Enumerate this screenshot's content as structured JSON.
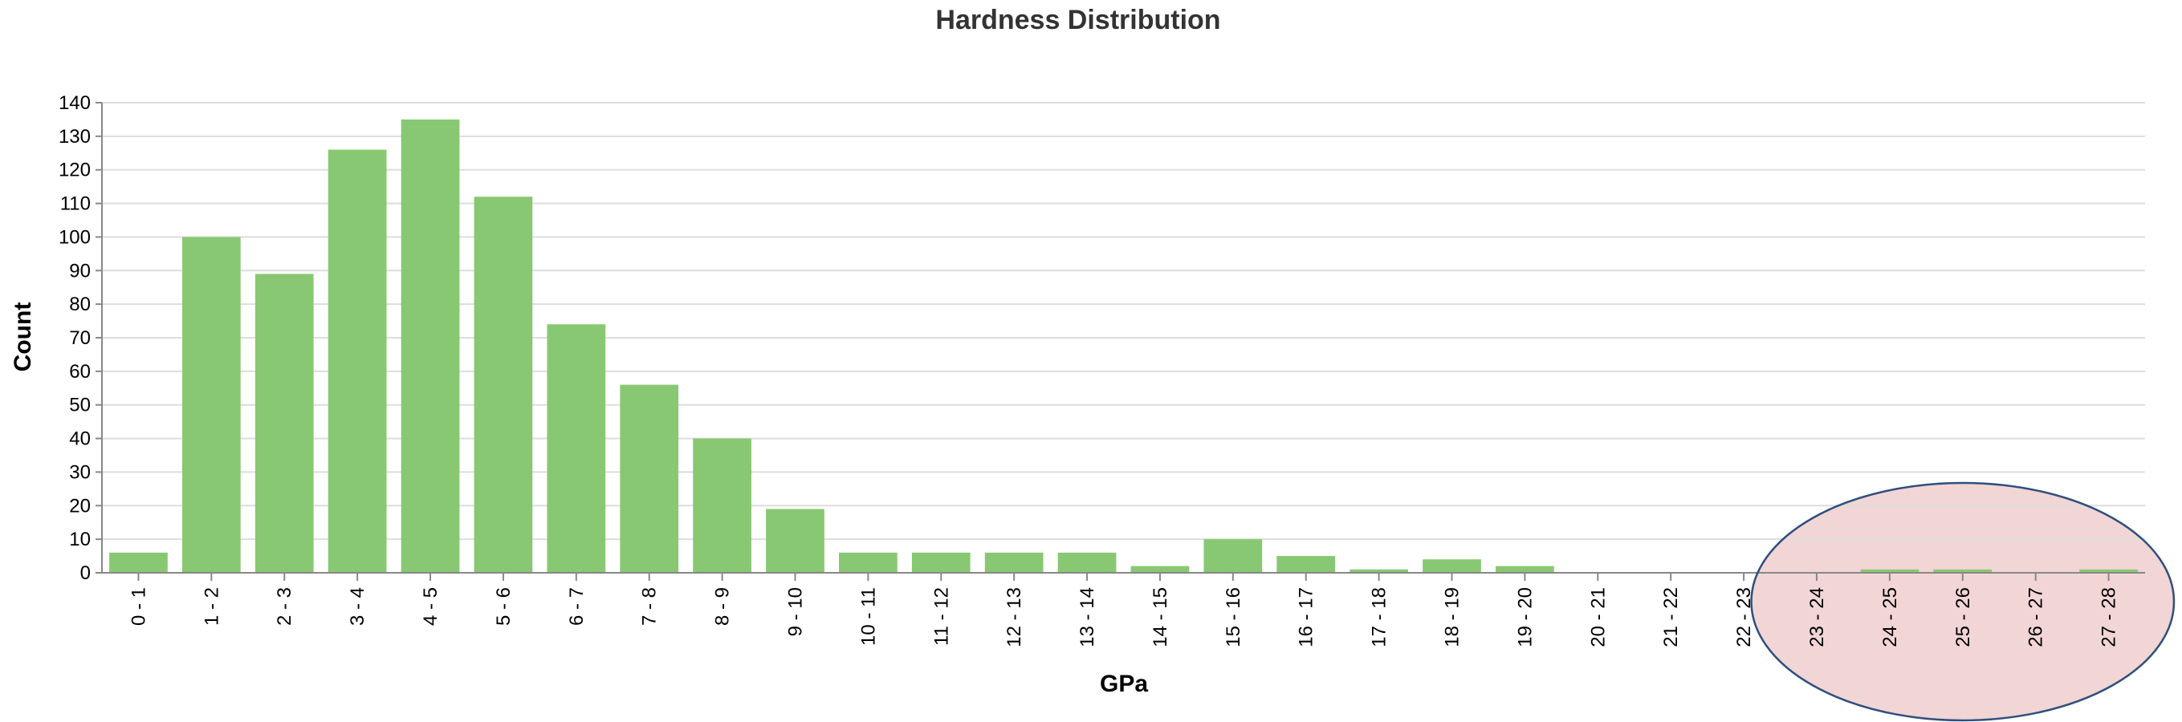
{
  "chart_data": {
    "type": "bar",
    "title": "Hardness Distribution",
    "xlabel": "GPa",
    "ylabel": "Count",
    "categories": [
      "0 - 1",
      "1 - 2",
      "2 - 3",
      "3 - 4",
      "4 - 5",
      "5 - 6",
      "6 - 7",
      "7 - 8",
      "8 - 9",
      "9 - 10",
      "10 - 11",
      "11 - 12",
      "12 - 13",
      "13 - 14",
      "14 - 15",
      "15 - 16",
      "16 - 17",
      "17 - 18",
      "18 - 19",
      "19 - 20",
      "20 - 21",
      "21 - 22",
      "22 - 23",
      "23 - 24",
      "24 - 25",
      "25 - 26",
      "26 - 27",
      "27 - 28"
    ],
    "values": [
      6,
      100,
      89,
      126,
      135,
      112,
      74,
      56,
      40,
      19,
      6,
      6,
      6,
      6,
      2,
      10,
      5,
      1,
      4,
      2,
      0,
      0,
      0,
      0,
      1,
      1,
      0,
      1
    ],
    "ylim": [
      0,
      140
    ],
    "yticks": [
      0,
      10,
      20,
      30,
      40,
      50,
      60,
      70,
      80,
      90,
      100,
      110,
      120,
      130,
      140
    ],
    "grid": true,
    "colors": {
      "bar": "#88c872",
      "highlight_fill": "#f2d5d5",
      "highlight_stroke": "#2f4f7f"
    },
    "annotation": {
      "shape": "ellipse",
      "highlights_categories": [
        "23 - 24",
        "24 - 25",
        "25 - 26",
        "26 - 27",
        "27 - 28"
      ]
    }
  }
}
